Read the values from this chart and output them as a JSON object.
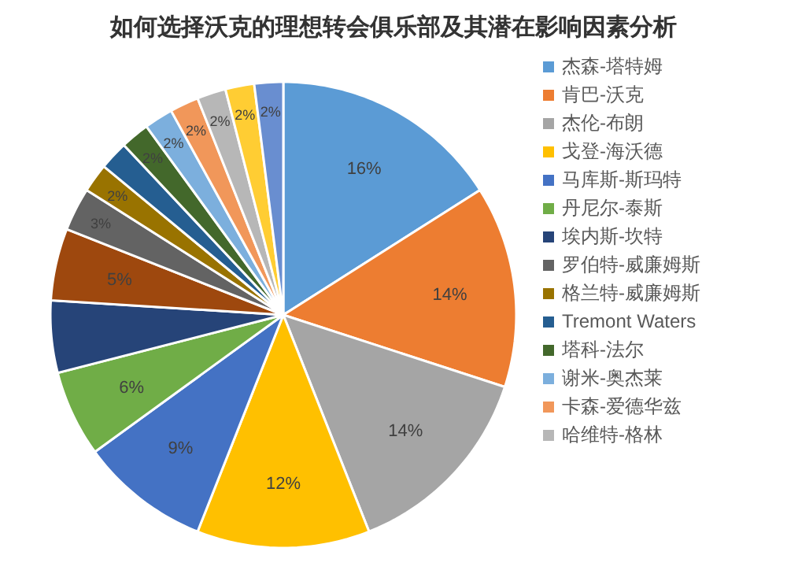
{
  "chart_data": {
    "type": "pie",
    "title": "如何选择沃克的理想转会俱乐部及其潜在影响因素分析",
    "categories": [
      "杰森-塔特姆",
      "肯巴-沃克",
      "杰伦-布朗",
      "戈登-海沃德",
      "马库斯-斯玛特",
      "丹尼尔-泰斯",
      "埃内斯-坎特",
      null,
      "罗伯特-威廉姆斯",
      "格兰特-威廉姆斯",
      "Tremont Waters",
      "塔科-法尔",
      "谢米-奥杰莱",
      "卡森-爱德华兹",
      "哈维特-格林",
      null,
      null
    ],
    "values": [
      16,
      14,
      14,
      12,
      9,
      6,
      5,
      5,
      3,
      2,
      2,
      2,
      2,
      2,
      2,
      2,
      2
    ],
    "value_labels": [
      "16%",
      "14%",
      "14%",
      "12%",
      "9%",
      "6%",
      null,
      "5%",
      "3%",
      "2%",
      null,
      "2%",
      "2%",
      "2%",
      "2%",
      "2%",
      "2%"
    ],
    "colors": [
      "#5b9bd5",
      "#ed7d31",
      "#a5a5a5",
      "#ffc000",
      "#4472c4",
      "#70ad47",
      "#264478",
      "#9e480e",
      "#636363",
      "#997300",
      "#255e91",
      "#43682b",
      "#7cafdd",
      "#f1975a",
      "#b7b7b7",
      "#ffcd33",
      "#698ed0"
    ],
    "legend": "right"
  }
}
